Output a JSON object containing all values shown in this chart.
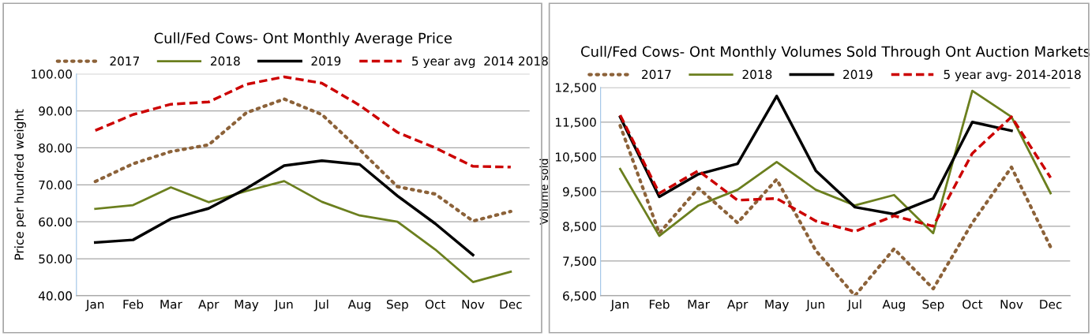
{
  "chart_data": [
    {
      "type": "line",
      "title": "Cull/Fed Cows- Ont Monthly Average Price",
      "ylabel": "Price per hundred weight",
      "categories": [
        "Jan",
        "Feb",
        "Mar",
        "Apr",
        "May",
        "Jun",
        "Jul",
        "Aug",
        "Sep",
        "Oct",
        "Nov",
        "Dec"
      ],
      "series": [
        {
          "name": "2017",
          "color": "#8c6239",
          "line_style": "dotted",
          "values": [
            70.9,
            75.7,
            79.0,
            80.8,
            89.5,
            93.2,
            89.0,
            79.5,
            69.5,
            67.5,
            60.2,
            62.8
          ]
        },
        {
          "name": "2018",
          "color": "#6b7f1e",
          "line_style": "solid",
          "values": [
            63.5,
            64.5,
            69.3,
            65.3,
            68.3,
            71.0,
            65.4,
            61.7,
            60.0,
            52.5,
            43.7,
            46.5
          ]
        },
        {
          "name": "2019",
          "color": "#000000",
          "line_style": "solid",
          "values": [
            54.4,
            55.1,
            60.8,
            63.6,
            69.0,
            75.2,
            76.5,
            75.5,
            67.0,
            59.5,
            51.0,
            null
          ]
        },
        {
          "name": "5 year avg  2014 2018",
          "color": "#cc0000",
          "line_style": "dashed",
          "values": [
            84.7,
            89.0,
            91.8,
            92.4,
            97.2,
            99.2,
            97.5,
            91.5,
            84.2,
            80.0,
            75.0,
            74.8
          ]
        }
      ],
      "ylim": [
        40,
        100
      ],
      "yticks": [
        {
          "value": 40,
          "label": "40.00"
        },
        {
          "value": 50,
          "label": "50.00"
        },
        {
          "value": 60,
          "label": "60.00"
        },
        {
          "value": 70,
          "label": "70.00"
        },
        {
          "value": 80,
          "label": "80.00"
        },
        {
          "value": 90,
          "label": "90.00"
        },
        {
          "value": 100,
          "label": "100.00"
        }
      ],
      "grid": "y",
      "legend": "top"
    },
    {
      "type": "line",
      "title": "Cull/Fed Cows- Ont Monthly Volumes Sold Through Ont Auction Markets",
      "ylabel": "Volume sold",
      "categories": [
        "Jan",
        "Feb",
        "Mar",
        "Apr",
        "May",
        "Jun",
        "Jul",
        "Aug",
        "Sep",
        "Oct",
        "Nov",
        "Dec"
      ],
      "series": [
        {
          "name": "2017",
          "color": "#8c6239",
          "line_style": "dotted",
          "values": [
            11400,
            8300,
            9600,
            8600,
            9850,
            7800,
            6500,
            7850,
            6700,
            8600,
            10200,
            7900
          ]
        },
        {
          "name": "2018",
          "color": "#6b7f1e",
          "line_style": "solid",
          "values": [
            10150,
            8220,
            9100,
            9550,
            10350,
            9550,
            9100,
            9400,
            8300,
            12400,
            11650,
            9450
          ]
        },
        {
          "name": "2019",
          "color": "#000000",
          "line_style": "solid",
          "values": [
            11650,
            9350,
            10000,
            10300,
            12250,
            10100,
            9050,
            8850,
            9300,
            11500,
            11250,
            null
          ]
        },
        {
          "name": "5 year avg- 2014-2018",
          "color": "#cc0000",
          "line_style": "dashed",
          "values": [
            11700,
            9450,
            10100,
            9250,
            9300,
            8650,
            8350,
            8800,
            8500,
            10600,
            11650,
            9900
          ]
        }
      ],
      "ylim": [
        6500,
        12500
      ],
      "yticks": [
        {
          "value": 6500,
          "label": "6,500"
        },
        {
          "value": 7500,
          "label": "7,500"
        },
        {
          "value": 8500,
          "label": "8,500"
        },
        {
          "value": 9500,
          "label": "9,500"
        },
        {
          "value": 10500,
          "label": "10,500"
        },
        {
          "value": 11500,
          "label": "11,500"
        },
        {
          "value": 12500,
          "label": "12,500"
        }
      ],
      "grid": "y",
      "legend": "top"
    }
  ]
}
